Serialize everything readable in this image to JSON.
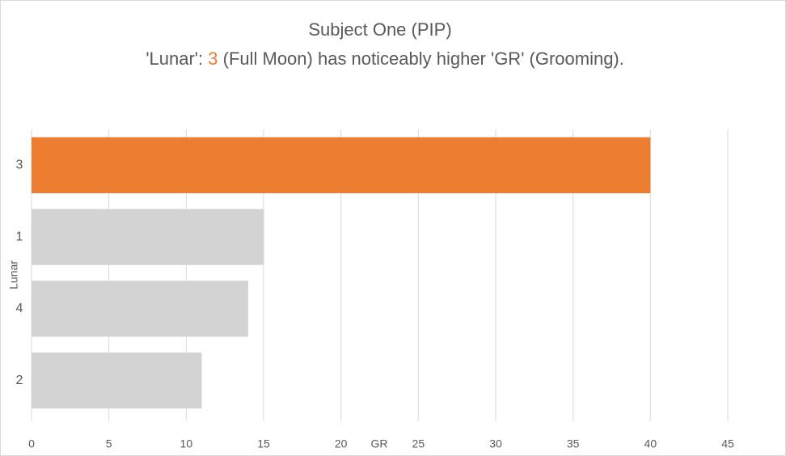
{
  "chart_data": {
    "type": "bar",
    "orientation": "horizontal",
    "title": "Subject One (PIP)",
    "subtitle": [
      "'Lunar': ",
      "3",
      " (Full Moon) has noticeably higher 'GR' (Grooming)."
    ],
    "subtitle_highlight_color": "#ed7d31",
    "x_label": "GR",
    "y_label": "Lunar",
    "categories": [
      "3",
      "1",
      "4",
      "2"
    ],
    "values": [
      40,
      15,
      14,
      11
    ],
    "colors": [
      "#ed7d31",
      "#d3d3d3",
      "#d3d3d3",
      "#d3d3d3"
    ],
    "xlim": [
      0,
      45
    ],
    "xticks": [
      0,
      5,
      10,
      15,
      20,
      25,
      30,
      35,
      40,
      45
    ],
    "grid": true
  }
}
